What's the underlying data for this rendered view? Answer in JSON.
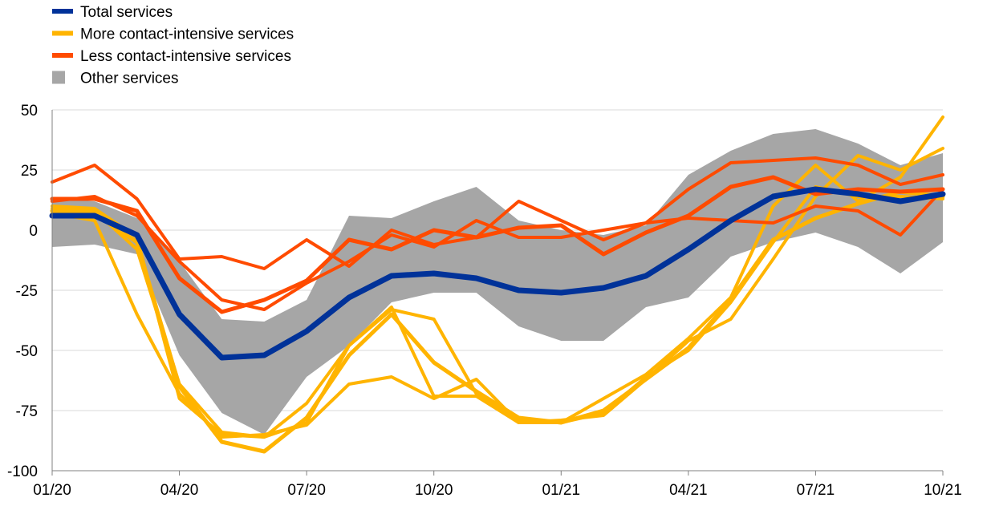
{
  "chart_data": {
    "type": "line",
    "x": [
      "01/20",
      "02/20",
      "03/20",
      "04/20",
      "05/20",
      "06/20",
      "07/20",
      "08/20",
      "09/20",
      "10/20",
      "11/20",
      "12/20",
      "01/21",
      "02/21",
      "03/21",
      "04/21",
      "05/21",
      "06/21",
      "07/21",
      "08/21",
      "09/21",
      "10/21"
    ],
    "x_tick_labels": [
      "01/20",
      "04/20",
      "07/20",
      "10/20",
      "01/21",
      "04/21",
      "07/21",
      "10/21"
    ],
    "y_ticks": [
      50,
      25,
      0,
      -25,
      -50,
      -75,
      -100
    ],
    "ylim": [
      -100,
      50
    ],
    "grid": "horizontal",
    "legend_position": "top-left",
    "legend": [
      {
        "label": "Total services",
        "color": "#003299",
        "swatch": "line"
      },
      {
        "label": "More contact-intensive services",
        "color": "#FFB400",
        "swatch": "line"
      },
      {
        "label": "Less contact-intensive services",
        "color": "#FF4B00",
        "swatch": "line"
      },
      {
        "label": "Other services",
        "color": "#A6A6A6",
        "swatch": "box"
      }
    ],
    "band": {
      "name": "Other services",
      "color": "#A6A6A6",
      "upper": [
        13,
        12,
        5,
        -13,
        -37,
        -38,
        -29,
        6,
        5,
        12,
        18,
        4,
        0,
        -2,
        2,
        23,
        33,
        40,
        42,
        36,
        27,
        32
      ],
      "lower": [
        -7,
        -6,
        -10,
        -52,
        -76,
        -85,
        -61,
        -48,
        -30,
        -26,
        -26,
        -40,
        -46,
        -46,
        -32,
        -28,
        -11,
        -5,
        -1,
        -7,
        -18,
        -5
      ]
    },
    "series": [
      {
        "group": "more",
        "color": "#FFB400",
        "width": 4,
        "values": [
          10,
          9,
          -3,
          -70,
          -85,
          -86,
          -72,
          -48,
          -32,
          -69,
          -69,
          -80,
          -80,
          -70,
          -60,
          -45,
          -28,
          10,
          27,
          12,
          22,
          47
        ]
      },
      {
        "group": "more",
        "color": "#FFB400",
        "width": 5,
        "values": [
          8,
          7,
          -5,
          -65,
          -88,
          -92,
          -78,
          -52,
          -35,
          -55,
          -67,
          -78,
          -80,
          -75,
          -62,
          -49,
          -29,
          -4,
          5,
          11,
          16,
          14
        ]
      },
      {
        "group": "more",
        "color": "#FFB400",
        "width": 4,
        "values": [
          7,
          4,
          -35,
          -68,
          -86,
          -85,
          -81,
          -64,
          -61,
          -70,
          -62,
          -80,
          -79,
          -77,
          -62,
          -46,
          -37,
          -12,
          14,
          31,
          25,
          34
        ]
      },
      {
        "group": "more",
        "color": "#FFB400",
        "width": 4,
        "values": [
          9,
          8,
          -8,
          -64,
          -84,
          -86,
          -80,
          -48,
          -33,
          -37,
          -68,
          -79,
          -80,
          -76,
          -61,
          -50,
          -30,
          -5,
          18,
          14,
          14,
          13
        ]
      },
      {
        "group": "less",
        "color": "#FF4B00",
        "width": 4,
        "values": [
          20,
          27,
          13,
          -12,
          -11,
          -16,
          -4,
          -15,
          0,
          -6,
          -3,
          12,
          4,
          -4,
          3,
          5,
          4,
          3,
          10,
          8,
          -2,
          17
        ]
      },
      {
        "group": "less",
        "color": "#FF4B00",
        "width": 5,
        "values": [
          13,
          13,
          8,
          -20,
          -34,
          -29,
          -21,
          -4,
          -8,
          0,
          -3,
          1,
          2,
          -10,
          -1,
          6,
          18,
          22,
          15,
          17,
          16,
          17
        ]
      },
      {
        "group": "less",
        "color": "#FF4B00",
        "width": 4,
        "values": [
          12,
          14,
          6,
          -13,
          -29,
          -33,
          -22,
          -13,
          -2,
          -7,
          4,
          -3,
          -3,
          0,
          3,
          17,
          28,
          29,
          30,
          27,
          19,
          23
        ]
      },
      {
        "group": "total",
        "color": "#003299",
        "width": 7,
        "values": [
          6,
          6,
          -2,
          -35,
          -53,
          -52,
          -42,
          -28,
          -19,
          -18,
          -20,
          -25,
          -26,
          -24,
          -19,
          -8,
          4,
          14,
          17,
          15,
          12,
          15
        ]
      }
    ]
  }
}
